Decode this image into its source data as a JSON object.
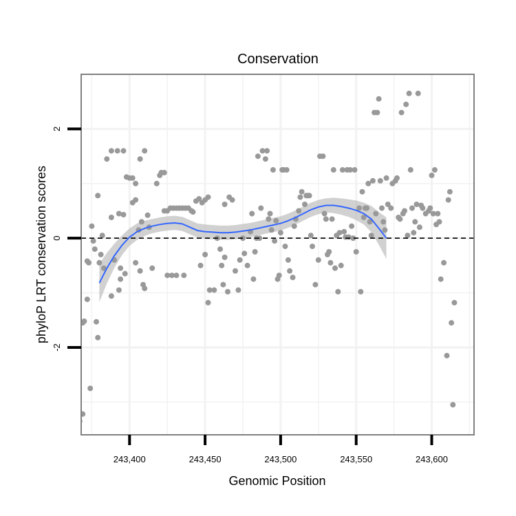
{
  "chart_data": {
    "type": "scatter",
    "title": "Conservation",
    "xlabel": "Genomic Position",
    "ylabel": "phyloP LRT conservation scores",
    "xlim": [
      243368,
      243628
    ],
    "ylim": [
      -3.6,
      3.0
    ],
    "x_ticks": [
      243400,
      243450,
      243500,
      243550,
      243600
    ],
    "x_tick_labels": [
      "243,400",
      "243,450",
      "243,500",
      "243,550",
      "243,600"
    ],
    "y_ticks": [
      -2,
      0,
      2
    ],
    "y_tick_labels": [
      "-2",
      "0",
      "2"
    ],
    "reference_line": {
      "y": 0,
      "style": "dashed"
    },
    "grid": true,
    "series": [
      {
        "name": "points",
        "kind": "scatter",
        "color": "#999999",
        "points": [
          [
            243367,
            -3.35
          ],
          [
            243369,
            -3.22
          ],
          [
            243374,
            -2.75
          ],
          [
            243369,
            -1.55
          ],
          [
            243370,
            -1.52
          ],
          [
            243372,
            -1.12
          ],
          [
            243378,
            -1.53
          ],
          [
            243379,
            -1.82
          ],
          [
            243366,
            -0.45
          ],
          [
            243372,
            -0.42
          ],
          [
            243373,
            -0.45
          ],
          [
            243376,
            -0.05
          ],
          [
            243377,
            -0.2
          ],
          [
            243380,
            -0.45
          ],
          [
            243381,
            -0.3
          ],
          [
            243383,
            -0.55
          ],
          [
            243382,
            0.05
          ],
          [
            243375,
            0.22
          ],
          [
            243379,
            0.78
          ],
          [
            243385,
            1.45
          ],
          [
            243388,
            1.6
          ],
          [
            243392,
            1.6
          ],
          [
            243396,
            1.6
          ],
          [
            243388,
            -1.06
          ],
          [
            243393,
            -0.95
          ],
          [
            243394,
            -0.75
          ],
          [
            243390,
            -0.4
          ],
          [
            243394,
            -0.55
          ],
          [
            243397,
            -0.65
          ],
          [
            243388,
            0.38
          ],
          [
            243393,
            0.45
          ],
          [
            243396,
            0.43
          ],
          [
            243398,
            1.12
          ],
          [
            243400,
            1.1
          ],
          [
            243402,
            1.1
          ],
          [
            243404,
            1.0
          ],
          [
            243402,
            0.65
          ],
          [
            243404,
            0.7
          ],
          [
            243406,
            0.15
          ],
          [
            243408,
            0.3
          ],
          [
            243404,
            -0.45
          ],
          [
            243407,
            -0.6
          ],
          [
            243410,
            -0.92
          ],
          [
            243409,
            -0.85
          ],
          [
            243407,
            1.45
          ],
          [
            243410,
            1.6
          ],
          [
            243412,
            0.42
          ],
          [
            243413,
            0.2
          ],
          [
            243415,
            -0.55
          ],
          [
            243418,
            1.0
          ],
          [
            243420,
            1.15
          ],
          [
            243421,
            1.2
          ],
          [
            243423,
            1.2
          ],
          [
            243423,
            0.5
          ],
          [
            243425,
            0.5
          ],
          [
            243427,
            0.55
          ],
          [
            243429,
            0.55
          ],
          [
            243431,
            0.55
          ],
          [
            243433,
            0.55
          ],
          [
            243435,
            0.55
          ],
          [
            243437,
            0.55
          ],
          [
            243439,
            0.55
          ],
          [
            243441,
            0.5
          ],
          [
            243425,
            -0.68
          ],
          [
            243428,
            -0.68
          ],
          [
            243431,
            -0.68
          ],
          [
            243436,
            -0.68
          ],
          [
            243442,
            0.48
          ],
          [
            243444,
            0.68
          ],
          [
            243446,
            0.72
          ],
          [
            243448,
            0.65
          ],
          [
            243450,
            0.7
          ],
          [
            243452,
            0.75
          ],
          [
            243447,
            -0.5
          ],
          [
            243450,
            -0.3
          ],
          [
            243452,
            -1.18
          ],
          [
            243453,
            -0.95
          ],
          [
            243456,
            -0.95
          ],
          [
            243458,
            0.0
          ],
          [
            243460,
            -0.2
          ],
          [
            243461,
            -0.5
          ],
          [
            243462,
            -0.85
          ],
          [
            243463,
            -0.35
          ],
          [
            243463,
            0.62
          ],
          [
            243465,
            -0.98
          ],
          [
            243466,
            0.75
          ],
          [
            243468,
            0.7
          ],
          [
            243470,
            -0.6
          ],
          [
            243472,
            -0.95
          ],
          [
            243473,
            -0.4
          ],
          [
            243475,
            0.0
          ],
          [
            243476,
            -0.28
          ],
          [
            243478,
            -0.5
          ],
          [
            243480,
            0.12
          ],
          [
            243481,
            0.45
          ],
          [
            243482,
            -0.75
          ],
          [
            243483,
            -0.25
          ],
          [
            243484,
            0.0
          ],
          [
            243486,
            0.0
          ],
          [
            243487,
            0.55
          ],
          [
            243488,
            1.6
          ],
          [
            243485,
            1.5
          ],
          [
            243490,
            1.45
          ],
          [
            243491,
            1.6
          ],
          [
            243492,
            0.35
          ],
          [
            243493,
            0.45
          ],
          [
            243494,
            0.15
          ],
          [
            243495,
            1.25
          ],
          [
            243496,
            -0.05
          ],
          [
            243497,
            0.32
          ],
          [
            243498,
            -0.75
          ],
          [
            243499,
            -0.68
          ],
          [
            243500,
            0.1
          ],
          [
            243501,
            1.25
          ],
          [
            243502,
            1.25
          ],
          [
            243504,
            1.25
          ],
          [
            243503,
            -0.15
          ],
          [
            243505,
            -0.4
          ],
          [
            243506,
            -0.6
          ],
          [
            243508,
            -0.72
          ],
          [
            243509,
            0.22
          ],
          [
            243510,
            0.35
          ],
          [
            243512,
            0.5
          ],
          [
            243513,
            0.75
          ],
          [
            243514,
            0.85
          ],
          [
            243516,
            0.62
          ],
          [
            243517,
            0.78
          ],
          [
            243518,
            0.78
          ],
          [
            243519,
            0.78
          ],
          [
            243520,
            0.05
          ],
          [
            243521,
            -0.15
          ],
          [
            243523,
            -0.85
          ],
          [
            243525,
            -0.4
          ],
          [
            243526,
            1.5
          ],
          [
            243528,
            1.5
          ],
          [
            243529,
            0.45
          ],
          [
            243530,
            0.35
          ],
          [
            243531,
            -0.3
          ],
          [
            243532,
            -0.25
          ],
          [
            243533,
            -0.45
          ],
          [
            243534,
            0.35
          ],
          [
            243535,
            1.25
          ],
          [
            243536,
            -0.55
          ],
          [
            243537,
            0.05
          ],
          [
            243538,
            -0.98
          ],
          [
            243539,
            0.1
          ],
          [
            243540,
            -0.5
          ],
          [
            243541,
            1.25
          ],
          [
            243542,
            0.12
          ],
          [
            243543,
            0.02
          ],
          [
            243544,
            1.25
          ],
          [
            243545,
            0.02
          ],
          [
            243546,
            1.25
          ],
          [
            243547,
            0.22
          ],
          [
            243548,
            0.0
          ],
          [
            243549,
            1.25
          ],
          [
            243550,
            -0.25
          ],
          [
            243552,
            0.55
          ],
          [
            243553,
            -0.98
          ],
          [
            243554,
            0.85
          ],
          [
            243555,
            0.38
          ],
          [
            243556,
            0.55
          ],
          [
            243557,
            0.55
          ],
          [
            243558,
            1.0
          ],
          [
            243559,
            0.3
          ],
          [
            243560,
            0.05
          ],
          [
            243561,
            1.05
          ],
          [
            243562,
            2.3
          ],
          [
            243563,
            0.45
          ],
          [
            243564,
            2.3
          ],
          [
            243565,
            2.55
          ],
          [
            243566,
            1.05
          ],
          [
            243567,
            0.55
          ],
          [
            243568,
            0.3
          ],
          [
            243569,
            0.15
          ],
          [
            243570,
            1.1
          ],
          [
            243571,
            0.62
          ],
          [
            243573,
            0.55
          ],
          [
            243574,
            1.0
          ],
          [
            243576,
            1.05
          ],
          [
            243577,
            1.1
          ],
          [
            243578,
            0.38
          ],
          [
            243579,
            0.35
          ],
          [
            243580,
            2.3
          ],
          [
            243581,
            0.45
          ],
          [
            243582,
            0.5
          ],
          [
            243583,
            2.45
          ],
          [
            243584,
            0.05
          ],
          [
            243585,
            2.65
          ],
          [
            243586,
            1.25
          ],
          [
            243587,
            0.55
          ],
          [
            243588,
            0.1
          ],
          [
            243589,
            0.3
          ],
          [
            243590,
            0.62
          ],
          [
            243591,
            2.65
          ],
          [
            243592,
            0.2
          ],
          [
            243593,
            0.6
          ],
          [
            243594,
            0.55
          ],
          [
            243596,
            0.45
          ],
          [
            243598,
            0.5
          ],
          [
            243599,
            0.55
          ],
          [
            243600,
            1.15
          ],
          [
            243601,
            0.45
          ],
          [
            243602,
            1.25
          ],
          [
            243603,
            0.25
          ],
          [
            243604,
            0.45
          ],
          [
            243605,
            0.3
          ],
          [
            243606,
            -0.75
          ],
          [
            243608,
            -0.45
          ],
          [
            243610,
            -2.15
          ],
          [
            243611,
            0.7
          ],
          [
            243612,
            0.85
          ],
          [
            243613,
            -1.55
          ],
          [
            243614,
            -3.05
          ],
          [
            243615,
            -1.18
          ]
        ]
      },
      {
        "name": "smooth",
        "kind": "line",
        "color": "#3366ff",
        "band_color": "#bdbdbd",
        "points": [
          [
            243380,
            -0.82
          ],
          [
            243385,
            -0.55
          ],
          [
            243390,
            -0.32
          ],
          [
            243395,
            -0.13
          ],
          [
            243400,
            0.02
          ],
          [
            243405,
            0.12
          ],
          [
            243410,
            0.18
          ],
          [
            243415,
            0.22
          ],
          [
            243420,
            0.25
          ],
          [
            243425,
            0.27
          ],
          [
            243430,
            0.28
          ],
          [
            243435,
            0.26
          ],
          [
            243440,
            0.2
          ],
          [
            243445,
            0.14
          ],
          [
            243450,
            0.12
          ],
          [
            243455,
            0.11
          ],
          [
            243460,
            0.1
          ],
          [
            243465,
            0.1
          ],
          [
            243470,
            0.11
          ],
          [
            243475,
            0.13
          ],
          [
            243480,
            0.15
          ],
          [
            243485,
            0.18
          ],
          [
            243490,
            0.21
          ],
          [
            243495,
            0.24
          ],
          [
            243500,
            0.27
          ],
          [
            243505,
            0.32
          ],
          [
            243510,
            0.38
          ],
          [
            243515,
            0.45
          ],
          [
            243520,
            0.52
          ],
          [
            243525,
            0.57
          ],
          [
            243530,
            0.6
          ],
          [
            243535,
            0.6
          ],
          [
            243540,
            0.58
          ],
          [
            243545,
            0.55
          ],
          [
            243550,
            0.51
          ],
          [
            243555,
            0.45
          ],
          [
            243560,
            0.35
          ],
          [
            243565,
            0.18
          ],
          [
            243570,
            0.0
          ]
        ],
        "band_halfwidth": [
          0.35,
          0.28,
          0.22,
          0.18,
          0.16,
          0.15,
          0.14,
          0.13,
          0.13,
          0.13,
          0.13,
          0.13,
          0.13,
          0.13,
          0.13,
          0.13,
          0.13,
          0.13,
          0.13,
          0.13,
          0.13,
          0.13,
          0.13,
          0.13,
          0.13,
          0.13,
          0.13,
          0.13,
          0.13,
          0.13,
          0.13,
          0.14,
          0.15,
          0.16,
          0.18,
          0.2,
          0.24,
          0.3,
          0.38
        ]
      }
    ]
  }
}
